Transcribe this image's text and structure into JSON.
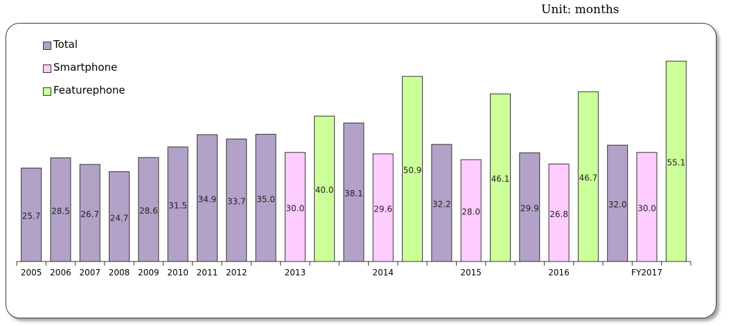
{
  "unit_text": "Unit: months",
  "colors": {
    "Total": "#b3a2c7",
    "Smartphone": "#ffccff",
    "Featurephone": "#ccff99"
  },
  "legend": [
    {
      "label": "Total",
      "color": "#b3a2c7"
    },
    {
      "label": "Smartphone",
      "color": "#ffccff"
    },
    {
      "label": "Featurephone",
      "color": "#ccff99"
    }
  ],
  "chart_data": {
    "type": "bar",
    "ylim": [
      0,
      62
    ],
    "grid": false,
    "legend_position": "top-left",
    "x_tick_labels": [
      "2005",
      "2006",
      "2007",
      "2008",
      "2009",
      "2010",
      "2011",
      "2012",
      "",
      "2013",
      "",
      "",
      "2014",
      "",
      "",
      "2015",
      "",
      "",
      "2016",
      "",
      "",
      "FY2017",
      ""
    ],
    "bars": [
      {
        "series": "Total",
        "value": 25.7,
        "label": "25.7"
      },
      {
        "series": "Total",
        "value": 28.5,
        "label": "28.5"
      },
      {
        "series": "Total",
        "value": 26.7,
        "label": "26.7"
      },
      {
        "series": "Total",
        "value": 24.7,
        "label": "24.7"
      },
      {
        "series": "Total",
        "value": 28.6,
        "label": "28.6"
      },
      {
        "series": "Total",
        "value": 31.5,
        "label": "31.5"
      },
      {
        "series": "Total",
        "value": 34.9,
        "label": "34.9"
      },
      {
        "series": "Total",
        "value": 33.7,
        "label": "33.7"
      },
      {
        "series": "Total",
        "value": 35.0,
        "label": "35.0"
      },
      {
        "series": "Smartphone",
        "value": 30.0,
        "label": "30.0"
      },
      {
        "series": "Featurephone",
        "value": 40.0,
        "label": "40.0"
      },
      {
        "series": "Total",
        "value": 38.1,
        "label": "38.1"
      },
      {
        "series": "Smartphone",
        "value": 29.6,
        "label": "29.6"
      },
      {
        "series": "Featurephone",
        "value": 50.9,
        "label": "50.9"
      },
      {
        "series": "Total",
        "value": 32.2,
        "label": "32.2"
      },
      {
        "series": "Smartphone",
        "value": 28.0,
        "label": "28.0"
      },
      {
        "series": "Featurephone",
        "value": 46.1,
        "label": "46.1"
      },
      {
        "series": "Total",
        "value": 29.9,
        "label": "29.9"
      },
      {
        "series": "Smartphone",
        "value": 26.8,
        "label": "26.8"
      },
      {
        "series": "Featurephone",
        "value": 46.7,
        "label": "46.7"
      },
      {
        "series": "Total",
        "value": 32.0,
        "label": "32.0"
      },
      {
        "series": "Smartphone",
        "value": 30.0,
        "label": "30.0"
      },
      {
        "series": "Featurephone",
        "value": 55.1,
        "label": "55.1"
      }
    ]
  }
}
